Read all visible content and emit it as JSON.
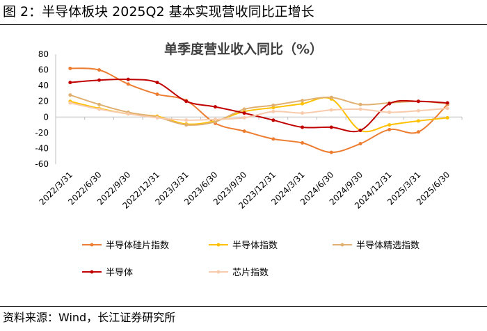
{
  "figure": {
    "title": "图 2：半导体板块 2025Q2 基本实现营收同比正增长",
    "source": "资料来源：Wind，长江证券研究所"
  },
  "chart_data": {
    "type": "line",
    "title": "单季度营业收入同比（%）",
    "categories": [
      "2022/3/31",
      "2022/6/30",
      "2022/9/30",
      "2022/12/31",
      "2023/3/31",
      "2023/6/30",
      "2023/9/30",
      "2023/12/31",
      "2024/3/31",
      "2024/6/30",
      "2024/9/30",
      "2024/12/31",
      "2025/3/31",
      "2025/6/30"
    ],
    "ylim": [
      -60,
      80
    ],
    "yticks": [
      80,
      60,
      40,
      20,
      0,
      -20,
      -40,
      -60
    ],
    "legend_position": "bottom",
    "series": [
      {
        "name": "半导体硅片指数",
        "color": "#ED7D31",
        "values": [
          62,
          60,
          42,
          29,
          21,
          -8,
          -18,
          -28,
          -33,
          -45,
          -34,
          -16,
          -19,
          16
        ]
      },
      {
        "name": "半导体指数",
        "color": "#FFC000",
        "values": [
          20,
          11,
          4,
          1,
          -9,
          -5,
          7,
          12,
          17,
          23,
          -17,
          -10,
          -5,
          -1
        ]
      },
      {
        "name": "半导体精选指数",
        "color": "#E0B070",
        "values": [
          28,
          16,
          6,
          0,
          -10,
          -6,
          10,
          15,
          21,
          25,
          16,
          18,
          20,
          17
        ]
      },
      {
        "name": "半导体",
        "color": "#C00000",
        "values": [
          44,
          47,
          48,
          44,
          20,
          13,
          5,
          -4,
          -13,
          -13,
          -17,
          17,
          20,
          18
        ]
      },
      {
        "name": "芯片指数",
        "color": "#F8CBAD",
        "values": [
          18,
          10,
          4,
          -1,
          -4,
          -3,
          -1,
          7,
          5,
          9,
          10,
          6,
          8,
          11
        ]
      }
    ]
  }
}
